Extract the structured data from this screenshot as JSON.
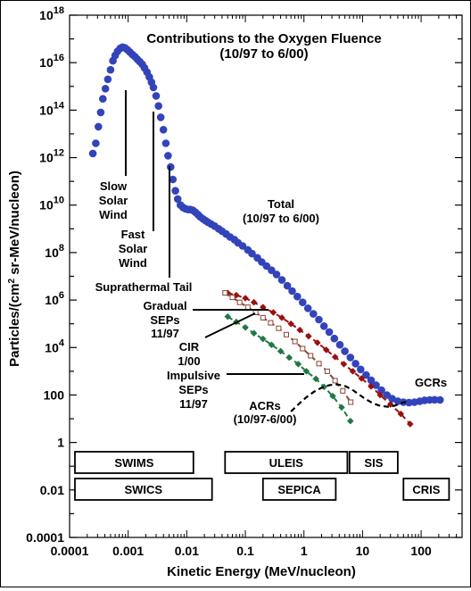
{
  "chart_data": {
    "type": "scatter",
    "title": "Contributions to the Oxygen Fluence",
    "subtitle": "(10/97 to 6/00)",
    "xlabel": "Kinetic Energy (MeV/nucleon)",
    "ylabel_parts": [
      "Particles/(cm",
      "2",
      " sr-MeV/nucleon)"
    ],
    "x_scale": "log",
    "y_scale": "log",
    "xlim": [
      0.0001,
      500
    ],
    "ylim": [
      0.0001,
      1e+18
    ],
    "x_ticks": [
      {
        "value": 0.0001,
        "label": "0.0001"
      },
      {
        "value": 0.001,
        "label": "0.001"
      },
      {
        "value": 0.01,
        "label": "0.01"
      },
      {
        "value": 0.1,
        "label": "0.1"
      },
      {
        "value": 1,
        "label": "1"
      },
      {
        "value": 10,
        "label": "10"
      },
      {
        "value": 100,
        "label": "100"
      }
    ],
    "y_ticks": [
      {
        "value": 0.0001,
        "label": "0.0001"
      },
      {
        "value": 0.01,
        "label": "0.01"
      },
      {
        "value": 1,
        "label": "1"
      },
      {
        "value": 100,
        "label": "100"
      },
      {
        "value": 10000,
        "base": "10",
        "exp": "4"
      },
      {
        "value": 1000000.0,
        "base": "10",
        "exp": "6"
      },
      {
        "value": 100000000.0,
        "base": "10",
        "exp": "8"
      },
      {
        "value": 10000000000.0,
        "base": "10",
        "exp": "10"
      },
      {
        "value": 1000000000000.0,
        "base": "10",
        "exp": "12"
      },
      {
        "value": 100000000000000.0,
        "base": "10",
        "exp": "14"
      },
      {
        "value": 1e+16,
        "base": "10",
        "exp": "16"
      },
      {
        "value": 1e+18,
        "base": "10",
        "exp": "18"
      }
    ],
    "series": [
      {
        "key": "total",
        "color": "#3344bb",
        "style": "markers",
        "points": [
          [
            0.00025,
            1500000000000.0
          ],
          [
            0.00028,
            4000000000000.0
          ],
          [
            0.00031,
            20000000000000.0
          ],
          [
            0.00034,
            80000000000000.0
          ],
          [
            0.00037,
            300000000000000.0
          ],
          [
            0.00041,
            800000000000000.0
          ],
          [
            0.00045,
            2000000000000000.0
          ],
          [
            0.0005,
            5000000000000000.0
          ],
          [
            0.00055,
            1.2e+16
          ],
          [
            0.0006,
            2e+16
          ],
          [
            0.00066,
            3e+16
          ],
          [
            0.00073,
            4e+16
          ],
          [
            0.0008,
            4.5e+16
          ],
          [
            0.00088,
            4.2e+16
          ],
          [
            0.00097,
            3.5e+16
          ],
          [
            0.00107,
            2.8e+16
          ],
          [
            0.00118,
            2.2e+16
          ],
          [
            0.0013,
            1.8e+16
          ],
          [
            0.00143,
            1.4e+16
          ],
          [
            0.00158,
            1.1e+16
          ],
          [
            0.00174,
            8500000000000000.0
          ],
          [
            0.0019,
            6000000000000000.0
          ],
          [
            0.0021,
            4000000000000000.0
          ],
          [
            0.0023,
            2500000000000000.0
          ],
          [
            0.0025,
            1500000000000000.0
          ],
          [
            0.0027,
            900000000000000.0
          ],
          [
            0.003,
            400000000000000.0
          ],
          [
            0.0033,
            150000000000000.0
          ],
          [
            0.0036,
            50000000000000.0
          ],
          [
            0.004,
            15000000000000.0
          ],
          [
            0.0044,
            4000000000000.0
          ],
          [
            0.0048,
            1200000000000.0
          ],
          [
            0.0053,
            400000000000.0
          ],
          [
            0.0058,
            120000000000.0
          ],
          [
            0.0064,
            40000000000.0
          ],
          [
            0.007,
            18000000000.0
          ],
          [
            0.0078,
            10000000000.0
          ],
          [
            0.0086,
            8000000000.0
          ],
          [
            0.0095,
            7000000000.0
          ],
          [
            0.0105,
            6500000000.0
          ],
          [
            0.0115,
            6500000000.0
          ],
          [
            0.0127,
            6000000000.0
          ],
          [
            0.014,
            5000000000.0
          ],
          [
            0.0155,
            4000000000.0
          ],
          [
            0.017,
            3200000000.0
          ],
          [
            0.019,
            2600000000.0
          ],
          [
            0.021,
            2200000000.0
          ],
          [
            0.023,
            1900000000.0
          ],
          [
            0.026,
            1600000000.0
          ],
          [
            0.03,
            1300000000.0
          ],
          [
            0.035,
            1000000000.0
          ],
          [
            0.04,
            800000000.0
          ],
          [
            0.047,
            600000000.0
          ],
          [
            0.055,
            450000000.0
          ],
          [
            0.065,
            350000000.0
          ],
          [
            0.075,
            260000000.0
          ],
          [
            0.09,
            190000000.0
          ],
          [
            0.11,
            130000000.0
          ],
          [
            0.13,
            90000000.0
          ],
          [
            0.16,
            60000000.0
          ],
          [
            0.19,
            40000000.0
          ],
          [
            0.23,
            27000000.0
          ],
          [
            0.28,
            18000000.0
          ],
          [
            0.34,
            12000000.0
          ],
          [
            0.42,
            7000000.0
          ],
          [
            0.52,
            4000000.0
          ],
          [
            0.63,
            2400000.0
          ],
          [
            0.77,
            1400000.0
          ],
          [
            0.95,
            800000.0
          ],
          [
            1.17,
            450000.0
          ],
          [
            1.45,
            260000.0
          ],
          [
            1.8,
            150000.0
          ],
          [
            2.2,
            80000.0
          ],
          [
            2.7,
            45000.0
          ],
          [
            3.3,
            24000.0
          ],
          [
            4.1,
            13000.0
          ],
          [
            5.0,
            7000.0
          ],
          [
            6.2,
            3800.0
          ],
          [
            7.6,
            2100.0
          ],
          [
            9.3,
            1200.0
          ],
          [
            11.5,
            700
          ],
          [
            14,
            420
          ],
          [
            17,
            260
          ],
          [
            21,
            160
          ],
          [
            26,
            100
          ],
          [
            32,
            70
          ],
          [
            40,
            55
          ],
          [
            50,
            50
          ],
          [
            62,
            48
          ],
          [
            77,
            50
          ],
          [
            95,
            55
          ],
          [
            115,
            60
          ],
          [
            140,
            62
          ],
          [
            170,
            63
          ],
          [
            210,
            62
          ]
        ]
      },
      {
        "key": "gradual",
        "color": "#991111",
        "style": "dashed-diamonds",
        "points": [
          [
            0.05,
            2000000.0
          ],
          [
            0.07,
            1600000.0
          ],
          [
            0.1,
            1200000.0
          ],
          [
            0.14,
            800000.0
          ],
          [
            0.2,
            500000.0
          ],
          [
            0.3,
            300000.0
          ],
          [
            0.42,
            180000.0
          ],
          [
            0.6,
            100000.0
          ],
          [
            0.85,
            55000.0
          ],
          [
            1.2,
            30000.0
          ],
          [
            1.7,
            16000.0
          ],
          [
            2.4,
            8000.0
          ],
          [
            3.4,
            4000.0
          ],
          [
            4.8,
            2000.0
          ],
          [
            6.8,
            1000.0
          ],
          [
            9.6,
            500
          ],
          [
            14,
            230
          ],
          [
            20,
            100
          ],
          [
            30,
            40
          ],
          [
            45,
            16
          ],
          [
            65,
            6
          ]
        ]
      },
      {
        "key": "cir",
        "color": "#884433",
        "style": "dashed-squares",
        "points": [
          [
            0.045,
            2000000.0
          ],
          [
            0.06,
            1300000.0
          ],
          [
            0.08,
            800000.0
          ],
          [
            0.11,
            500000.0
          ],
          [
            0.15,
            300000.0
          ],
          [
            0.2,
            180000.0
          ],
          [
            0.27,
            110000.0
          ],
          [
            0.37,
            65000.0
          ],
          [
            0.5,
            35000.0
          ],
          [
            0.7,
            18000.0
          ],
          [
            0.95,
            9000.0
          ],
          [
            1.3,
            4500.0
          ],
          [
            1.8,
            2100.0
          ],
          [
            2.5,
            1000.0
          ],
          [
            3.4,
            400
          ],
          [
            4.6,
            150
          ],
          [
            6.3,
            50
          ]
        ]
      },
      {
        "key": "impulsive",
        "color": "#227744",
        "style": "dashed-diamonds",
        "points": [
          [
            0.05,
            200000.0
          ],
          [
            0.07,
            120000.0
          ],
          [
            0.1,
            70000.0
          ],
          [
            0.14,
            40000.0
          ],
          [
            0.2,
            23000.0
          ],
          [
            0.28,
            13000.0
          ],
          [
            0.4,
            7000.0
          ],
          [
            0.56,
            3800.0
          ],
          [
            0.8,
            2000.0
          ],
          [
            1.1,
            1000.0
          ],
          [
            1.6,
            480
          ],
          [
            2.2,
            220
          ],
          [
            3.1,
            90
          ],
          [
            4.4,
            30
          ],
          [
            6.2,
            8
          ]
        ]
      },
      {
        "key": "acr",
        "color": "#000000",
        "style": "dashed-line",
        "points": [
          [
            0.6,
            20
          ],
          [
            0.8,
            40
          ],
          [
            1.1,
            80
          ],
          [
            1.5,
            140
          ],
          [
            2.0,
            200
          ],
          [
            2.7,
            260
          ],
          [
            3.6,
            280
          ],
          [
            4.8,
            250
          ],
          [
            6.4,
            180
          ],
          [
            8.5,
            110
          ],
          [
            11,
            70
          ],
          [
            15,
            45
          ],
          [
            20,
            35
          ],
          [
            27,
            32
          ],
          [
            35,
            35
          ],
          [
            45,
            45
          ],
          [
            60,
            55
          ]
        ]
      }
    ],
    "annotations": {
      "title_lines": [
        "Contributions to the Oxygen Fluence",
        "(10/97 to 6/00)"
      ],
      "slow_solar_wind": [
        "Slow",
        "Solar",
        "Wind"
      ],
      "fast_solar_wind": [
        "Fast",
        "Solar",
        "Wind"
      ],
      "suprathermal_tail": "Suprathermal Tail",
      "total": [
        "Total",
        "(10/97 to 6/00)"
      ],
      "gradual_seps": [
        "Gradual",
        "SEPs",
        "11/97"
      ],
      "cir": [
        "CIR",
        "1/00"
      ],
      "impulsive_seps": [
        "Impulsive",
        "SEPs",
        "11/97"
      ],
      "acrs": [
        "ACRs",
        "(10/97-6/00)"
      ],
      "gcrs": "GCRs"
    },
    "instruments": [
      {
        "label": "SWIMS",
        "range": [
          8e-05,
          0.013
        ],
        "row": 1
      },
      {
        "label": "SWICS",
        "range": [
          0.0001,
          0.027
        ],
        "row": 2
      },
      {
        "label": "ULEIS",
        "range": [
          0.045,
          5.5
        ],
        "row": 1
      },
      {
        "label": "SIS",
        "range": [
          6,
          40
        ],
        "row": 1
      },
      {
        "label": "SEPICA",
        "range": [
          0.2,
          3.5
        ],
        "row": 2
      },
      {
        "label": "CRIS",
        "range": [
          50,
          300
        ],
        "row": 2
      }
    ]
  }
}
